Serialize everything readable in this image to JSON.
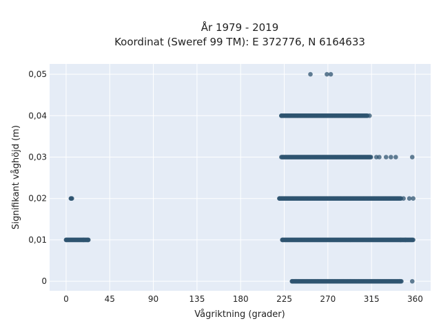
{
  "chart_data": {
    "type": "scatter",
    "title_line1": "År 1979 - 2019",
    "title_line2": "Koordinat (Sweref 99 TM): E 372776, N 6164633",
    "xlabel": "Vågriktning (grader)",
    "ylabel": "Signifikant våghöjd (m)",
    "xlim": [
      -17,
      376
    ],
    "ylim": [
      -0.0023,
      0.0525
    ],
    "x_ticks": [
      0,
      45,
      90,
      135,
      180,
      225,
      270,
      315,
      360
    ],
    "x_tick_labels": [
      "0",
      "45",
      "90",
      "135",
      "180",
      "225",
      "270",
      "315",
      "360"
    ],
    "y_ticks": [
      0,
      0.01,
      0.02,
      0.03,
      0.04,
      0.05
    ],
    "y_tick_labels": [
      "0",
      "0,01",
      "0,02",
      "0,03",
      "0,04",
      "0,05"
    ],
    "grid": true,
    "marker_color": "#2f5470",
    "plot_background": "#e5ecf6",
    "clusters": [
      {
        "y": 0.0,
        "x_start": 233,
        "x_end": 346,
        "x_extra": [
          233,
          237,
          344,
          357
        ]
      },
      {
        "y": 0.01,
        "x_start": 0,
        "x_end": 23,
        "x_extra": [
          0,
          18,
          23
        ]
      },
      {
        "y": 0.01,
        "x_start": 223,
        "x_end": 358,
        "x_extra": [
          223,
          345,
          350,
          358
        ]
      },
      {
        "y": 0.02,
        "x_start": 5,
        "x_end": 6,
        "x_extra": [
          5,
          6
        ]
      },
      {
        "y": 0.02,
        "x_start": 220,
        "x_end": 346,
        "x_extra": [
          220,
          348,
          354,
          358
        ]
      },
      {
        "y": 0.03,
        "x_start": 222,
        "x_end": 315,
        "x_extra": [
          320,
          323,
          330,
          335,
          340,
          357
        ]
      },
      {
        "y": 0.04,
        "x_start": 222,
        "x_end": 311,
        "x_extra": [
          222,
          313
        ]
      },
      {
        "y": 0.05,
        "x_start": 252,
        "x_end": 252,
        "x_extra": [
          252,
          269,
          273
        ]
      }
    ]
  }
}
